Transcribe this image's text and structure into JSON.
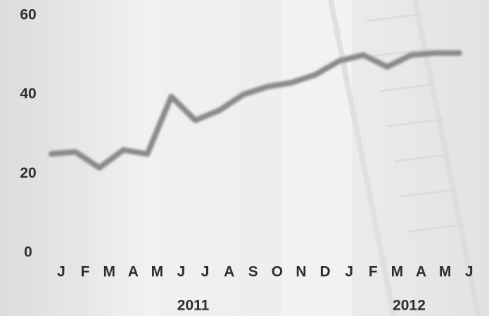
{
  "chart_data": {
    "type": "line",
    "categories": [
      "J",
      "F",
      "M",
      "A",
      "M",
      "J",
      "J",
      "A",
      "S",
      "O",
      "N",
      "D",
      "J",
      "F",
      "M",
      "A",
      "M",
      "J"
    ],
    "x_groups": [
      "2011",
      "2012"
    ],
    "series": [
      {
        "name": null,
        "color": "#8a8a8a",
        "values": [
          25,
          25.5,
          21.5,
          26,
          25,
          39.5,
          33.5,
          36,
          40,
          42,
          43,
          45,
          48.5,
          50,
          47,
          50,
          50.5,
          50.5
        ]
      }
    ],
    "ylim": [
      0,
      60
    ],
    "yticks": [
      0,
      20,
      40,
      60
    ],
    "grid": false
  }
}
